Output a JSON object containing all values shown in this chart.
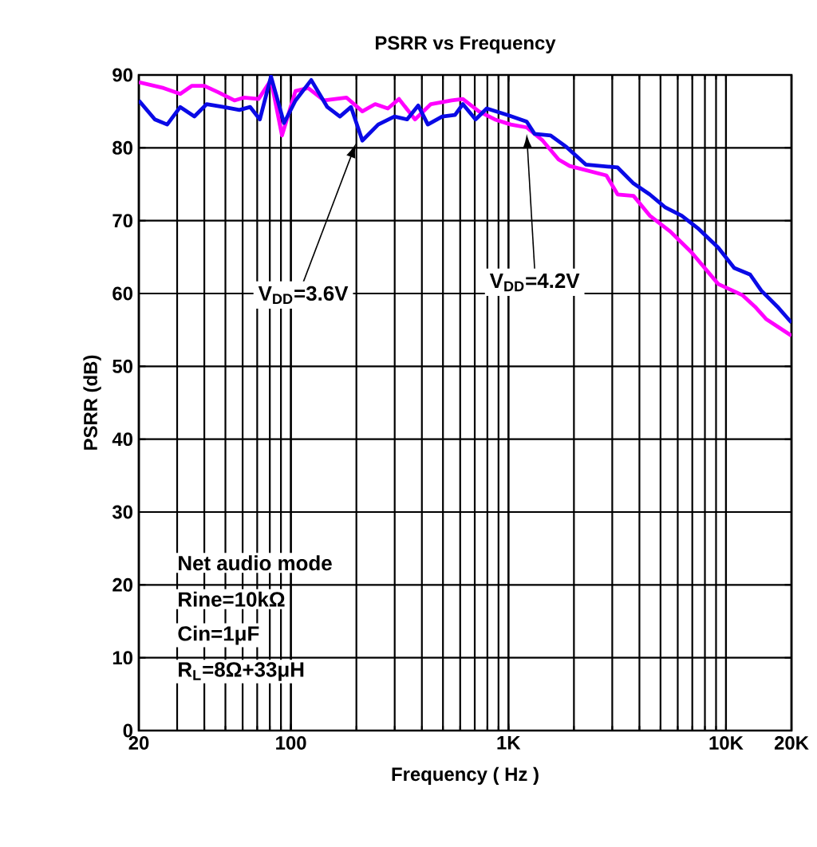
{
  "chart_data": {
    "type": "line",
    "title": "PSRR vs Frequency",
    "xlabel": "Frequency ( Hz )",
    "ylabel": "PSRR (dB)",
    "log": "x",
    "grid": true,
    "xlim": [
      20,
      20000
    ],
    "ylim": [
      0,
      90
    ],
    "xticks": [
      20,
      100,
      {
        "value": 1000,
        "label": "1K"
      },
      {
        "value": 10000,
        "label": "10K"
      },
      {
        "value": 20000,
        "label": "20K"
      }
    ],
    "yticks": [
      0,
      10,
      20,
      30,
      40,
      50,
      60,
      70,
      80,
      90
    ],
    "series": [
      {
        "color": "#ff00ff",
        "x": [
          20,
          26,
          31,
          35,
          40,
          46.5,
          55,
          61,
          71,
          81,
          91,
          105,
          120,
          142,
          180,
          213,
          244,
          279,
          314,
          372,
          440,
          548,
          617,
          731,
          865,
          1024,
          1213,
          1436,
          1700,
          1912,
          2820,
          3175,
          3760,
          4460,
          5550,
          6920,
          9210,
          11860,
          13580,
          15280,
          20000
        ],
        "values": [
          89,
          88.2,
          87.4,
          88.5,
          88.5,
          87.6,
          86.5,
          86.9,
          86.7,
          89.3,
          81.7,
          87.8,
          88.2,
          86.5,
          86.9,
          85,
          86,
          85.4,
          86.7,
          83.9,
          86,
          86.5,
          86.7,
          85,
          83.9,
          83.2,
          82.8,
          81,
          78.4,
          77.5,
          76.2,
          73.6,
          73.4,
          70.7,
          68.5,
          65.7,
          61.3,
          59.8,
          58.2,
          56.5,
          54.2
        ]
      },
      {
        "color": "#0a0ae6",
        "x": [
          20,
          23.7,
          27,
          31,
          36,
          41,
          49,
          58,
          65,
          72,
          81,
          93,
          105,
          124,
          147,
          168,
          189,
          213,
          252,
          299,
          342,
          385,
          426,
          496,
          568,
          617,
          706,
          795,
          991,
          1213,
          1320,
          1563,
          1850,
          2266,
          3175,
          3760,
          4460,
          5270,
          6250,
          7400,
          9210,
          10910,
          12910,
          14530,
          17220,
          20000
        ],
        "values": [
          86.5,
          83.9,
          83.2,
          85.6,
          84.3,
          86,
          85.6,
          85.2,
          85.6,
          83.9,
          89.8,
          83.4,
          86.5,
          89.3,
          85.6,
          84.3,
          85.6,
          81,
          83.2,
          84.3,
          83.9,
          85.8,
          83.2,
          84.3,
          84.5,
          86,
          83.9,
          85.4,
          84.5,
          83.6,
          81.9,
          81.7,
          80.1,
          77.7,
          77.3,
          75.1,
          73.6,
          71.8,
          70.7,
          69,
          66.3,
          63.5,
          62.6,
          60.4,
          58.2,
          56
        ]
      }
    ],
    "annotations": [
      {
        "text": "V$_{DD}$=3.6V",
        "x": 199,
        "y": 80.6
      },
      {
        "text": "V$_{DD}$=4.2V",
        "x": 1213,
        "y": 81.9
      },
      "Net audio mode",
      "Rine=10kΩ",
      "Cin=1μF",
      "R$_{L}$=8Ω+33μH"
    ]
  }
}
